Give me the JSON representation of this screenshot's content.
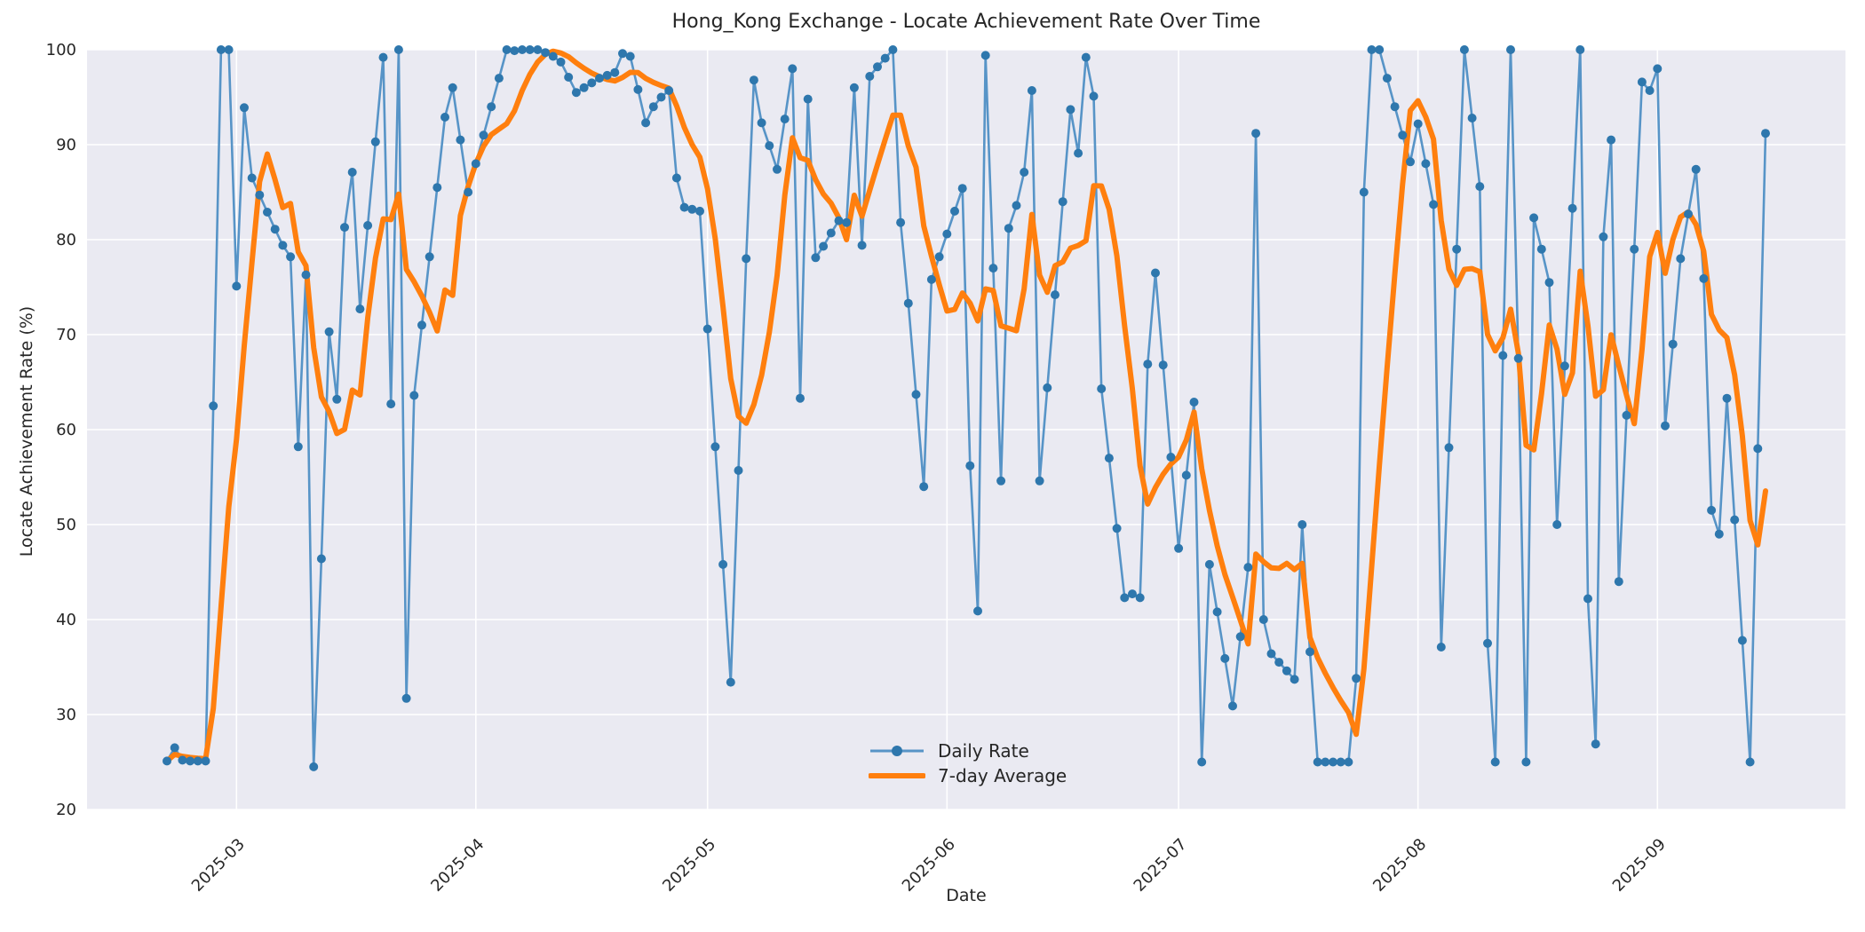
{
  "header": {
    "title": "Hong_Kong Exchange - Locate Achievement Rate Over Time"
  },
  "legend": {
    "daily_label": "Daily Rate",
    "avg_label": "7-day Average"
  },
  "chart_data": {
    "type": "line",
    "title": "Hong_Kong Exchange - Locate Achievement Rate Over Time",
    "xlabel": "Date",
    "ylabel": "Locate Achievement Rate (%)",
    "ylim": [
      20,
      100
    ],
    "yticks": [
      20,
      30,
      40,
      50,
      60,
      70,
      80,
      90,
      100
    ],
    "grid": true,
    "legend_position": "lower center",
    "start_date": "2025-02-20",
    "xticks": [
      {
        "label": "2025-03",
        "day_index": 9
      },
      {
        "label": "2025-04",
        "day_index": 40
      },
      {
        "label": "2025-05",
        "day_index": 70
      },
      {
        "label": "2025-06",
        "day_index": 101
      },
      {
        "label": "2025-07",
        "day_index": 131
      },
      {
        "label": "2025-08",
        "day_index": 162
      },
      {
        "label": "2025-09",
        "day_index": 193
      }
    ],
    "colors": {
      "daily_line": "#5794c7",
      "daily_marker": "#2e77ad",
      "avg_line": "#ff7f0e",
      "plot_bg": "#eaeaf2",
      "grid": "#ffffff",
      "text": "#262626"
    },
    "series": [
      {
        "name": "Daily Rate",
        "values": [
          25.1,
          26.5,
          25.2,
          25.1,
          25.1,
          25.1,
          62.5,
          100,
          100,
          75.1,
          93.9,
          86.5,
          84.7,
          82.9,
          81.1,
          79.4,
          78.2,
          58.2,
          76.3,
          24.5,
          46.4,
          70.3,
          63.2,
          81.3,
          87.1,
          72.7,
          81.5,
          90.3,
          99.2,
          62.7,
          100,
          31.7,
          63.6,
          71.0,
          78.2,
          85.5,
          92.9,
          96.0,
          90.5,
          85.0,
          88.0,
          91.0,
          94.0,
          97.0,
          100,
          99.9,
          100,
          100,
          100,
          99.7,
          99.3,
          98.7,
          97.1,
          95.5,
          96.0,
          96.5,
          97.0,
          97.3,
          97.6,
          99.6,
          99.3,
          95.8,
          92.3,
          94.0,
          95.0,
          95.7,
          86.5,
          83.4,
          83.2,
          83.0,
          70.6,
          58.2,
          45.8,
          33.4,
          55.7,
          78.0,
          96.8,
          92.3,
          89.9,
          87.4,
          92.7,
          98.0,
          63.3,
          94.8,
          78.1,
          79.3,
          80.7,
          82.0,
          81.8,
          96.0,
          79.4,
          97.2,
          98.2,
          99.1,
          100,
          81.8,
          73.3,
          63.7,
          54.0,
          75.8,
          78.2,
          80.6,
          83.0,
          85.4,
          56.2,
          40.9,
          99.4,
          77.0,
          54.6,
          81.2,
          83.6,
          87.1,
          95.7,
          54.6,
          64.4,
          74.2,
          84.0,
          93.7,
          89.1,
          99.2,
          95.1,
          64.3,
          57.0,
          49.6,
          42.3,
          42.7,
          42.3,
          66.9,
          76.5,
          66.8,
          57.1,
          47.5,
          55.2,
          62.9,
          25.0,
          45.8,
          40.8,
          35.9,
          30.9,
          38.2,
          45.5,
          91.2,
          40.0,
          36.4,
          35.5,
          34.6,
          33.7,
          50.0,
          36.6,
          25.0,
          25.0,
          25.0,
          25.0,
          25.0,
          33.8,
          85.0,
          100,
          100,
          97.0,
          94.0,
          91.0,
          88.2,
          92.2,
          88.0,
          83.7,
          37.1,
          58.1,
          79.0,
          100,
          92.8,
          85.6,
          37.5,
          25.0,
          67.8,
          100,
          67.5,
          25.0,
          82.3,
          79.0,
          75.5,
          50.0,
          66.7,
          83.3,
          100,
          42.2,
          26.9,
          80.3,
          90.5,
          44.0,
          61.5,
          79.0,
          96.6,
          95.7,
          98.0,
          60.4,
          69.0,
          78.0,
          82.7,
          87.4,
          75.9,
          51.5,
          49.0,
          63.3,
          50.5,
          37.8,
          25.0,
          58.0,
          91.2
        ]
      },
      {
        "name": "7-day Average",
        "derived": "rolling_mean_window_7_min_periods_1"
      }
    ]
  }
}
